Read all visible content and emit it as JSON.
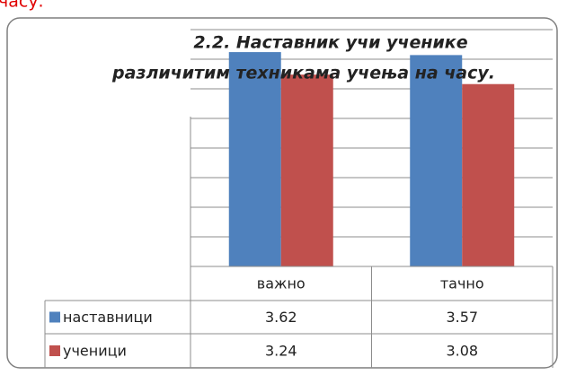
{
  "heading_fragment": "часу.",
  "chart_data": {
    "type": "bar",
    "title": [
      "2.2. Наставник учи ученике",
      "различитим техникама учења на часу."
    ],
    "categories": [
      "важно",
      "тачно"
    ],
    "series": [
      {
        "name": "наставници",
        "color": "#4f81bd",
        "values": [
          3.62,
          3.57
        ]
      },
      {
        "name": "ученици",
        "color": "#c0504d",
        "values": [
          3.24,
          3.08
        ]
      }
    ],
    "ylim": [
      0,
      4
    ],
    "yticks": [
      0,
      0.5,
      1,
      1.5,
      2,
      2.5,
      3,
      3.5,
      4
    ],
    "grid": true
  }
}
